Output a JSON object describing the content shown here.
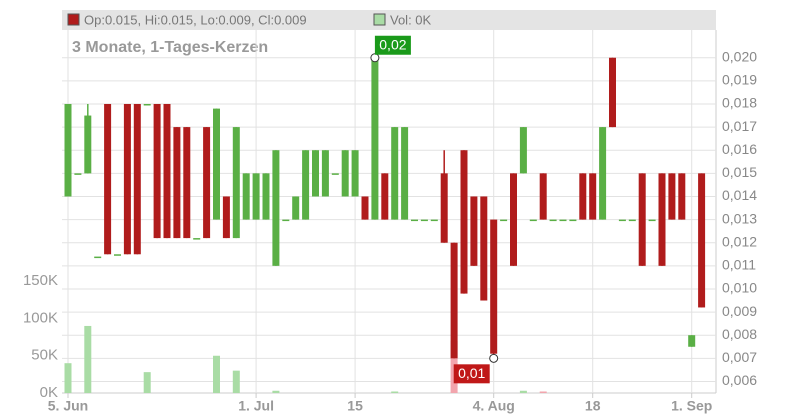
{
  "chart_data": {
    "type": "candlestick",
    "subtitle": "3 Monate, 1-Tages-Kerzen",
    "ohlc_legend": "Op:0.015, Hi:0.015, Lo:0.009, Cl:0.009",
    "volume_legend": "Vol: 0K",
    "up_color": "#5aaf45",
    "down_color": "#b01c1c",
    "volume_up_color": "#a9dca5",
    "volume_down_color": "#f2a5ad",
    "categories": [
      "5. Jun",
      null,
      null,
      null,
      null,
      null,
      null,
      null,
      null,
      null,
      null,
      null,
      null,
      null,
      null,
      null,
      null,
      null,
      null,
      "1. Jul",
      null,
      null,
      null,
      null,
      null,
      null,
      null,
      null,
      null,
      "15",
      null,
      null,
      null,
      null,
      null,
      null,
      null,
      null,
      null,
      null,
      null,
      null,
      null,
      "4. Aug",
      null,
      null,
      null,
      null,
      null,
      null,
      null,
      null,
      null,
      "18",
      null,
      null,
      null,
      null,
      null,
      null,
      null,
      null,
      null,
      "1. Sep",
      null
    ],
    "open": [
      0.014,
      0.015,
      0.015,
      0.0114,
      0.018,
      0.0115,
      0.018,
      0.018,
      0.018,
      0.018,
      0.018,
      0.017,
      0.017,
      0.0122,
      0.017,
      0.013,
      0.014,
      0.0122,
      0.013,
      0.013,
      0.013,
      0.011,
      0.013,
      0.013,
      0.013,
      0.014,
      0.014,
      0.015,
      0.014,
      0.014,
      0.014,
      0.013,
      0.015,
      0.013,
      0.013,
      0.013,
      0.013,
      0.013,
      0.015,
      0.012,
      0.016,
      0.014,
      0.014,
      0.013,
      0.013,
      0.015,
      0.015,
      0.013,
      0.015,
      0.013,
      0.013,
      0.013,
      0.015,
      0.015,
      0.013,
      0.02,
      0.013,
      0.013,
      0.015,
      0.013,
      0.015,
      0.015,
      0.015,
      0.0075,
      0.015
    ],
    "high": [
      0.018,
      0.015,
      0.018,
      0.0114,
      0.018,
      0.0115,
      0.018,
      0.018,
      0.018,
      0.018,
      0.018,
      0.017,
      0.017,
      0.0122,
      0.017,
      0.0178,
      0.014,
      0.017,
      0.015,
      0.015,
      0.015,
      0.016,
      0.013,
      0.014,
      0.016,
      0.016,
      0.016,
      0.015,
      0.016,
      0.016,
      0.014,
      0.02,
      0.015,
      0.017,
      0.017,
      0.013,
      0.013,
      0.013,
      0.016,
      0.012,
      0.016,
      0.014,
      0.014,
      0.013,
      0.013,
      0.015,
      0.017,
      0.013,
      0.015,
      0.013,
      0.013,
      0.013,
      0.015,
      0.015,
      0.017,
      0.02,
      0.013,
      0.013,
      0.015,
      0.013,
      0.015,
      0.015,
      0.015,
      0.008,
      0.015
    ],
    "low": [
      0.014,
      0.015,
      0.015,
      0.0114,
      0.0115,
      0.0115,
      0.0115,
      0.0115,
      0.018,
      0.0122,
      0.0122,
      0.0122,
      0.0122,
      0.0122,
      0.0122,
      0.013,
      0.0122,
      0.0122,
      0.013,
      0.013,
      0.013,
      0.011,
      0.013,
      0.013,
      0.013,
      0.014,
      0.014,
      0.015,
      0.014,
      0.014,
      0.013,
      0.013,
      0.013,
      0.013,
      0.013,
      0.013,
      0.013,
      0.013,
      0.012,
      0.007,
      0.0098,
      0.011,
      0.0095,
      0.007,
      0.013,
      0.011,
      0.015,
      0.013,
      0.013,
      0.013,
      0.013,
      0.013,
      0.013,
      0.013,
      0.013,
      0.017,
      0.013,
      0.013,
      0.011,
      0.013,
      0.011,
      0.013,
      0.013,
      0.0075,
      0.0092
    ],
    "close": [
      0.018,
      0.015,
      0.0175,
      0.0114,
      0.0115,
      0.0115,
      0.0115,
      0.0115,
      0.018,
      0.0122,
      0.0122,
      0.0122,
      0.0122,
      0.0122,
      0.0122,
      0.0178,
      0.0122,
      0.017,
      0.015,
      0.015,
      0.015,
      0.016,
      0.013,
      0.014,
      0.016,
      0.016,
      0.016,
      0.015,
      0.016,
      0.016,
      0.013,
      0.02,
      0.013,
      0.017,
      0.017,
      0.013,
      0.013,
      0.013,
      0.012,
      0.007,
      0.0098,
      0.011,
      0.0095,
      0.0072,
      0.013,
      0.011,
      0.017,
      0.013,
      0.013,
      0.013,
      0.013,
      0.013,
      0.013,
      0.013,
      0.017,
      0.017,
      0.013,
      0.013,
      0.011,
      0.013,
      0.011,
      0.013,
      0.013,
      0.008,
      0.0092
    ],
    "volume": [
      40000,
      0,
      90000,
      0,
      0,
      0,
      0,
      0,
      28000,
      0,
      0,
      0,
      0,
      0,
      0,
      50000,
      0,
      30000,
      0,
      0,
      0,
      3000,
      0,
      0,
      0,
      0,
      0,
      0,
      0,
      0,
      0,
      0,
      0,
      2000,
      0,
      0,
      0,
      0,
      0,
      70000,
      0,
      0,
      0,
      0,
      0,
      0,
      3000,
      0,
      2000,
      0,
      0,
      0,
      0,
      0,
      0,
      0,
      0,
      0,
      0,
      0,
      0,
      0,
      0,
      0,
      0
    ],
    "ylim": [
      0.0055,
      0.0212
    ],
    "yticks": [
      {
        "value": 0.006,
        "label": "0,006"
      },
      {
        "value": 0.007,
        "label": "0,007"
      },
      {
        "value": 0.008,
        "label": "0,008"
      },
      {
        "value": 0.009,
        "label": "0,009"
      },
      {
        "value": 0.01,
        "label": "0,010"
      },
      {
        "value": 0.011,
        "label": "0,011"
      },
      {
        "value": 0.012,
        "label": "0,012"
      },
      {
        "value": 0.013,
        "label": "0,013"
      },
      {
        "value": 0.014,
        "label": "0,014"
      },
      {
        "value": 0.015,
        "label": "0,015"
      },
      {
        "value": 0.016,
        "label": "0,016"
      },
      {
        "value": 0.017,
        "label": "0,017"
      },
      {
        "value": 0.018,
        "label": "0,018"
      },
      {
        "value": 0.019,
        "label": "0,019"
      },
      {
        "value": 0.02,
        "label": "0,020"
      }
    ],
    "y2lim": [
      0,
      200000
    ],
    "y2ticks": [
      {
        "value": 0,
        "label": "0K"
      },
      {
        "value": 50000,
        "label": "50K"
      },
      {
        "value": 100000,
        "label": "100K"
      },
      {
        "value": 150000,
        "label": "150K"
      }
    ],
    "annotations": [
      {
        "text": "0,02",
        "index": 31,
        "field": "high"
      },
      {
        "text": "0,01",
        "index": 43,
        "field": "low"
      }
    ],
    "grid": true
  }
}
